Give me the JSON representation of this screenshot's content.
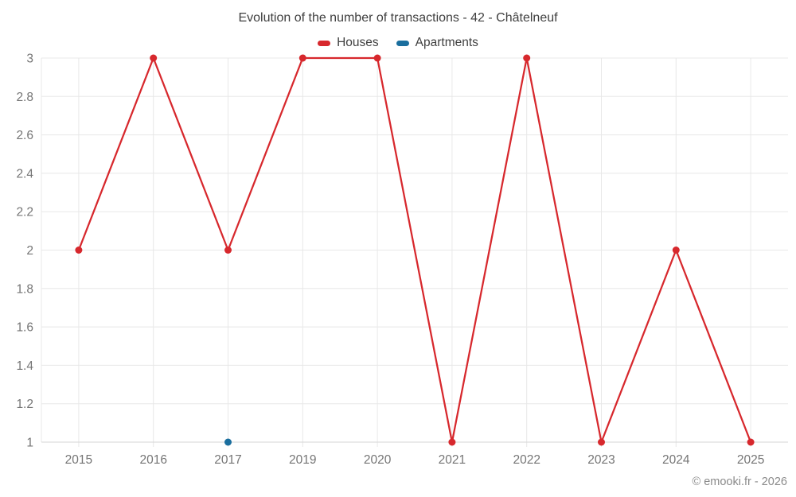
{
  "title": "Evolution of the number of transactions - 42 - Châtelneuf",
  "legend": [
    {
      "label": "Houses",
      "color": "#d7282d"
    },
    {
      "label": "Apartments",
      "color": "#1a6e9e"
    }
  ],
  "copyright": "© emooki.fr - 2026",
  "colors": {
    "background": "#ffffff",
    "grid": "#e8e8e8",
    "axis_line": "#d6d6d6",
    "tick_label": "#757575",
    "title_text": "#3f3f3f",
    "copyright_text": "#8a8a8a",
    "houses_series": "#d7282d",
    "apartments_series": "#1a6e9e"
  },
  "chart_data": {
    "type": "line",
    "title": "Evolution of the number of transactions - 42 - Châtelneuf",
    "categories": [
      "2015",
      "2016",
      "2017",
      "2019",
      "2020",
      "2021",
      "2022",
      "2023",
      "2024",
      "2025"
    ],
    "series": [
      {
        "name": "Houses",
        "color": "#d7282d",
        "style": "line+markers",
        "values": [
          2,
          3,
          2,
          3,
          3,
          1,
          3,
          1,
          2,
          1
        ]
      },
      {
        "name": "Apartments",
        "color": "#1a6e9e",
        "style": "markers",
        "values": [
          null,
          null,
          1,
          null,
          null,
          null,
          null,
          null,
          null,
          null
        ]
      }
    ],
    "xlabel": "",
    "ylabel": "",
    "ylim": [
      1,
      3
    ],
    "yticks": [
      1,
      1.2,
      1.4,
      1.6,
      1.8,
      2,
      2.2,
      2.4,
      2.6,
      2.8,
      3
    ],
    "ytick_labels": [
      "1",
      "1.2",
      "1.4",
      "1.6",
      "1.8",
      "2",
      "2.2",
      "2.4",
      "2.6",
      "2.8",
      "3"
    ],
    "grid": true,
    "legend_position": "top"
  }
}
